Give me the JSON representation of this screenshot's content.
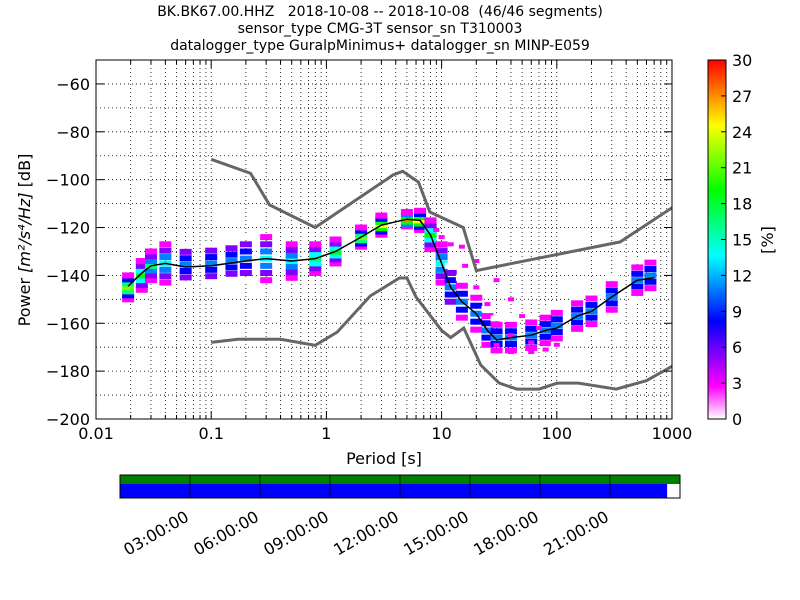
{
  "chart_data": {
    "type": "heatmap",
    "title": [
      "BK.BK67.00.HHZ   2018-10-08 -- 2018-10-08  (46/46 segments)",
      "sensor_type CMG-3T sensor_sn T310003",
      "datalogger_type GuralpMinimus+ datalogger_sn MINP-E059"
    ],
    "xlabel": "Period [s]",
    "ylabel": "Power [m²/s⁴/Hz] [dB]",
    "ylabel_prefix": "Power ",
    "ylabel_units": "[m²/s⁴/Hz]",
    "ylabel_suffix": " [dB]",
    "x_scale": "log",
    "xlim": [
      0.01,
      1000
    ],
    "ylim": [
      -200,
      -50
    ],
    "x_ticks": [
      {
        "v": 0.01,
        "label": "0.01"
      },
      {
        "v": 0.1,
        "label": "0.1"
      },
      {
        "v": 1,
        "label": "1"
      },
      {
        "v": 10,
        "label": "10"
      },
      {
        "v": 100,
        "label": "100"
      },
      {
        "v": 1000,
        "label": "1000"
      }
    ],
    "y_ticks": [
      {
        "v": -60,
        "label": "−60"
      },
      {
        "v": -80,
        "label": "−80"
      },
      {
        "v": -100,
        "label": "−100"
      },
      {
        "v": -120,
        "label": "−120"
      },
      {
        "v": -140,
        "label": "−140"
      },
      {
        "v": -160,
        "label": "−160"
      },
      {
        "v": -180,
        "label": "−180"
      },
      {
        "v": -200,
        "label": "−200"
      }
    ],
    "grid": true,
    "colorbar": {
      "label": "[%]",
      "range": [
        0,
        30
      ],
      "ticks": [
        {
          "v": 0,
          "label": "0"
        },
        {
          "v": 3,
          "label": "3"
        },
        {
          "v": 6,
          "label": "6"
        },
        {
          "v": 9,
          "label": "9"
        },
        {
          "v": 12,
          "label": "12"
        },
        {
          "v": 15,
          "label": "15"
        },
        {
          "v": 18,
          "label": "18"
        },
        {
          "v": 21,
          "label": "21"
        },
        {
          "v": 24,
          "label": "24"
        },
        {
          "v": 27,
          "label": "27"
        },
        {
          "v": 30,
          "label": "30"
        }
      ],
      "colors": [
        "#ffffff",
        "#ff00ff",
        "#8000ff",
        "#0000ff",
        "#0080ff",
        "#00ffff",
        "#00ff80",
        "#00ff00",
        "#80ff00",
        "#ffff00",
        "#ff8000",
        "#ff0000"
      ]
    },
    "noise_models": [
      {
        "name": "NHNM",
        "color": "#666666",
        "points": [
          [
            0.1,
            -91.5
          ],
          [
            0.22,
            -97.4
          ],
          [
            0.32,
            -110.5
          ],
          [
            0.8,
            -120
          ],
          [
            3.8,
            -98
          ],
          [
            4.6,
            -96.5
          ],
          [
            6.3,
            -101
          ],
          [
            7.9,
            -113.5
          ],
          [
            15.4,
            -120
          ],
          [
            20,
            -138
          ],
          [
            354.8,
            -126
          ],
          [
            10000,
            -80
          ]
        ]
      },
      {
        "name": "NLNM",
        "color": "#666666",
        "points": [
          [
            0.1,
            -168
          ],
          [
            0.17,
            -166.7
          ],
          [
            0.4,
            -166.7
          ],
          [
            0.8,
            -169.2
          ],
          [
            1.24,
            -163.7
          ],
          [
            2.4,
            -148.6
          ],
          [
            4.3,
            -141.1
          ],
          [
            5,
            -141.1
          ],
          [
            6,
            -149
          ],
          [
            10,
            -163
          ],
          [
            12,
            -166
          ],
          [
            15.6,
            -162
          ],
          [
            21.9,
            -177.5
          ],
          [
            31.6,
            -185
          ],
          [
            45,
            -187.5
          ],
          [
            70,
            -187.5
          ],
          [
            101,
            -185
          ],
          [
            154,
            -185
          ],
          [
            328,
            -187.5
          ],
          [
            600,
            -184
          ],
          [
            1000,
            -178
          ]
        ]
      }
    ],
    "median_psd": [
      [
        0.019,
        -144.5
      ],
      [
        0.025,
        -139
      ],
      [
        0.03,
        -136
      ],
      [
        0.04,
        -135
      ],
      [
        0.06,
        -136.5
      ],
      [
        0.1,
        -136
      ],
      [
        0.2,
        -134
      ],
      [
        0.3,
        -133
      ],
      [
        0.5,
        -134
      ],
      [
        0.8,
        -133
      ],
      [
        1.2,
        -130
      ],
      [
        2,
        -124
      ],
      [
        3,
        -119
      ],
      [
        5,
        -116.5
      ],
      [
        6.5,
        -117
      ],
      [
        8,
        -123
      ],
      [
        10,
        -135
      ],
      [
        12,
        -145
      ],
      [
        15,
        -151
      ],
      [
        20,
        -156
      ],
      [
        25,
        -163
      ],
      [
        30,
        -167
      ],
      [
        40,
        -166
      ],
      [
        60,
        -165
      ],
      [
        80,
        -163
      ],
      [
        100,
        -162
      ],
      [
        150,
        -157
      ],
      [
        200,
        -155
      ],
      [
        300,
        -149
      ],
      [
        500,
        -142
      ],
      [
        700,
        -141
      ]
    ],
    "psd_distribution": [
      {
        "p": 0.019,
        "y": -145,
        "s": 2.5,
        "pct": 22
      },
      {
        "p": 0.025,
        "y": -140,
        "s": 3,
        "pct": 18
      },
      {
        "p": 0.03,
        "y": -136,
        "s": 3,
        "pct": 15
      },
      {
        "p": 0.04,
        "y": -135,
        "s": 4,
        "pct": 13
      },
      {
        "p": 0.06,
        "y": -135.5,
        "s": 4,
        "pct": 12
      },
      {
        "p": 0.1,
        "y": -135,
        "s": 4,
        "pct": 12
      },
      {
        "p": 0.15,
        "y": -134,
        "s": 4,
        "pct": 12
      },
      {
        "p": 0.2,
        "y": -133,
        "s": 4.5,
        "pct": 12
      },
      {
        "p": 0.3,
        "y": -133,
        "s": 4.5,
        "pct": 13
      },
      {
        "p": 0.5,
        "y": -134,
        "s": 3.5,
        "pct": 14
      },
      {
        "p": 0.8,
        "y": -133,
        "s": 3,
        "pct": 16
      },
      {
        "p": 1.2,
        "y": -130,
        "s": 2.5,
        "pct": 18
      },
      {
        "p": 2,
        "y": -124,
        "s": 2,
        "pct": 22
      },
      {
        "p": 3,
        "y": -119,
        "s": 2,
        "pct": 24
      },
      {
        "p": 5,
        "y": -116.5,
        "s": 1.5,
        "pct": 26
      },
      {
        "p": 6.5,
        "y": -117,
        "s": 2,
        "pct": 24
      },
      {
        "p": 8,
        "y": -123,
        "s": 3,
        "pct": 18
      },
      {
        "p": 10,
        "y": -135,
        "s": 4,
        "pct": 14
      },
      {
        "p": 12,
        "y": -145,
        "s": 4.5,
        "pct": 12
      },
      {
        "p": 15,
        "y": -151,
        "s": 5,
        "pct": 11
      },
      {
        "p": 20,
        "y": -156,
        "s": 5,
        "pct": 11
      },
      {
        "p": 25,
        "y": -163,
        "s": 4.5,
        "pct": 11
      },
      {
        "p": 30,
        "y": -166,
        "s": 4,
        "pct": 11
      },
      {
        "p": 40,
        "y": -166,
        "s": 4,
        "pct": 11
      },
      {
        "p": 60,
        "y": -165,
        "s": 4,
        "pct": 11
      },
      {
        "p": 80,
        "y": -163,
        "s": 4,
        "pct": 11
      },
      {
        "p": 100,
        "y": -161,
        "s": 4,
        "pct": 11
      },
      {
        "p": 150,
        "y": -157,
        "s": 4,
        "pct": 11
      },
      {
        "p": 200,
        "y": -155,
        "s": 4,
        "pct": 11
      },
      {
        "p": 300,
        "y": -149,
        "s": 4,
        "pct": 11
      },
      {
        "p": 500,
        "y": -142,
        "s": 4,
        "pct": 11
      },
      {
        "p": 650,
        "y": -140,
        "s": 4,
        "pct": 11
      }
    ],
    "outlier_tracks": [
      {
        "name": "",
        "pct": 3,
        "points": [
          [
            10,
            -124
          ],
          [
            15,
            -128
          ],
          [
            20,
            -134
          ],
          [
            30,
            -142
          ],
          [
            40,
            -150
          ],
          [
            50,
            -157
          ],
          [
            70,
            -162
          ],
          [
            100,
            -166
          ]
        ]
      },
      {
        "name": "",
        "pct": 3,
        "points": [
          [
            9,
            -121
          ],
          [
            12,
            -127
          ],
          [
            16,
            -136
          ],
          [
            20,
            -145
          ],
          [
            25,
            -152
          ],
          [
            30,
            -160
          ],
          [
            40,
            -165
          ],
          [
            60,
            -168
          ]
        ]
      },
      {
        "name": "",
        "pct": 4,
        "points": [
          [
            30,
            -169
          ],
          [
            40,
            -172
          ],
          [
            60,
            -172
          ],
          [
            80,
            -171
          ],
          [
            100,
            -169
          ]
        ]
      }
    ]
  },
  "coverage": {
    "ticks": [
      "03:00:00",
      "06:00:00",
      "09:00:00",
      "12:00:00",
      "15:00:00",
      "18:00:00",
      "21:00:00"
    ],
    "top_fraction": 1.0,
    "bottom_fraction": 0.977,
    "top_color": "#008000",
    "bottom_color": "#0000ff"
  }
}
